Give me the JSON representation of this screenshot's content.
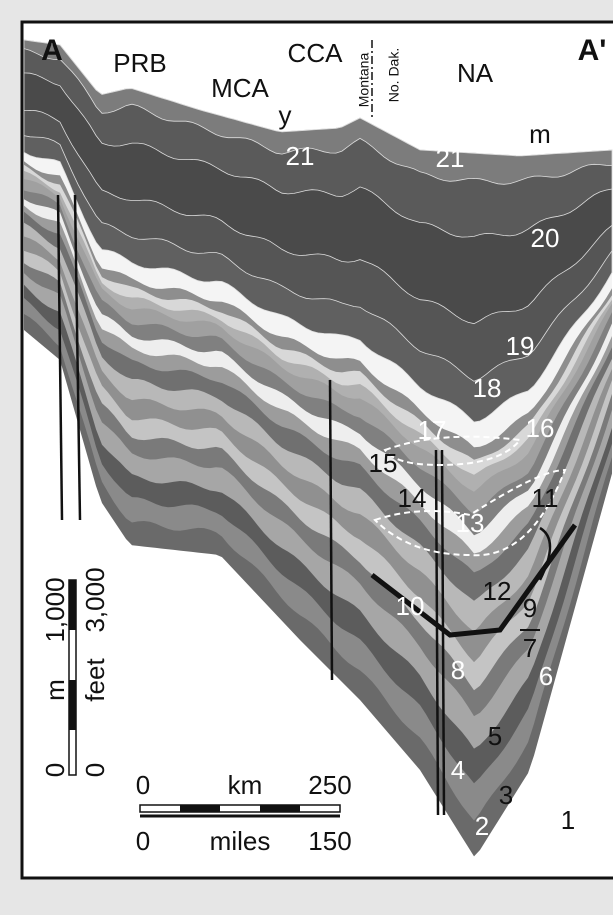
{
  "section": {
    "left_end": "A",
    "right_end": "A'"
  },
  "regions": [
    "PRB",
    "MCA",
    "CCA",
    "NA"
  ],
  "state_line": {
    "left": "Montana",
    "right": "No. Dak."
  },
  "markers": [
    "y",
    "m"
  ],
  "units": [
    "1",
    "2",
    "3",
    "4",
    "5",
    "6",
    "7",
    "8",
    "9",
    "10",
    "11",
    "12",
    "13",
    "14",
    "15",
    "16",
    "17",
    "18",
    "19",
    "20",
    "21"
  ],
  "scale": {
    "vertical": {
      "meters": {
        "zero": "0",
        "unit": "m",
        "max": "1,000"
      },
      "feet": {
        "zero": "0",
        "unit": "feet",
        "max": "3,000"
      }
    },
    "horizontal": {
      "km": {
        "zero": "0",
        "unit": "km",
        "max": "250"
      },
      "miles": {
        "zero": "0",
        "unit": "miles",
        "max": "150"
      }
    }
  }
}
